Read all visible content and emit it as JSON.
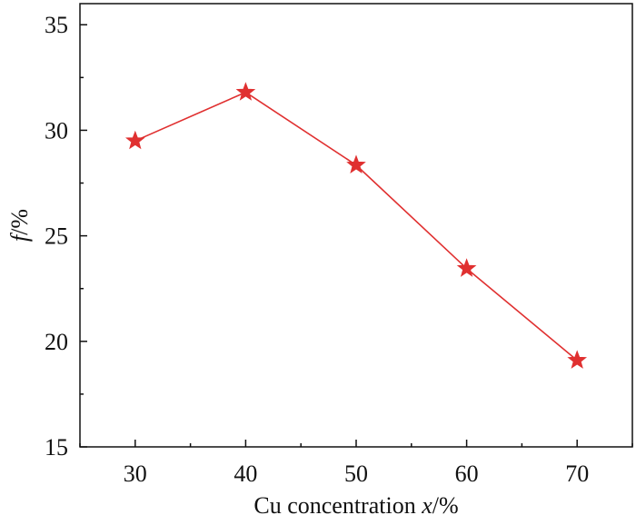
{
  "chart_data": {
    "type": "line",
    "title": "",
    "xlabel_parts": {
      "prefix": "Cu concentration ",
      "variable": "x",
      "suffix": "/%"
    },
    "ylabel_parts": {
      "variable": "f",
      "suffix": "/%"
    },
    "x": [
      30,
      40,
      50,
      60,
      70
    ],
    "series": [
      {
        "marker": "star",
        "color": "#e03030",
        "values": [
          29.5,
          31.8,
          28.35,
          23.45,
          19.1
        ]
      }
    ],
    "xlim": [
      25,
      75
    ],
    "ylim": [
      15,
      36
    ],
    "xticks": [
      "30",
      "40",
      "50",
      "60",
      "70"
    ],
    "yticks": [
      "15",
      "20",
      "25",
      "30",
      "35"
    ],
    "grid": false,
    "legend": "none"
  }
}
